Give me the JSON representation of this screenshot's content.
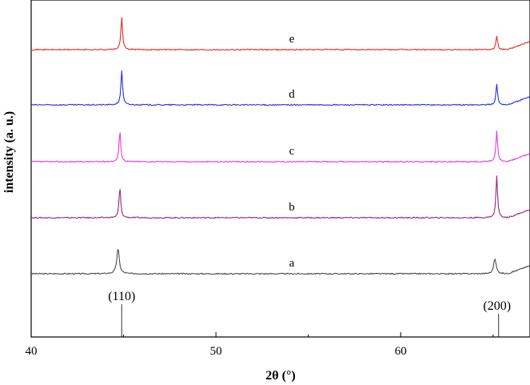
{
  "chart_data": {
    "type": "line",
    "title": "",
    "xlabel": "2θ (°)",
    "ylabel": "intensity (a. u.)",
    "xlim": [
      40,
      67
    ],
    "xticks": [
      40,
      50,
      60
    ],
    "x_tick_labels": [
      "40",
      "50",
      "60"
    ],
    "y_ticks_shown": false,
    "grid": false,
    "legend": "none",
    "series": [
      {
        "name": "a",
        "color": "#4a4a4a",
        "baseline": 0.0,
        "peaks": [
          {
            "x": 44.7,
            "height": 0.45,
            "width": 0.12
          },
          {
            "x": 65.1,
            "height": 0.27,
            "width": 0.12
          }
        ]
      },
      {
        "name": "b",
        "color": "#8e2a7e",
        "baseline": 1.0,
        "peaks": [
          {
            "x": 44.8,
            "height": 0.55,
            "width": 0.08
          },
          {
            "x": 65.2,
            "height": 0.75,
            "width": 0.08
          }
        ]
      },
      {
        "name": "c",
        "color": "#e53ad8",
        "baseline": 2.0,
        "peaks": [
          {
            "x": 44.8,
            "height": 0.55,
            "width": 0.08
          },
          {
            "x": 65.2,
            "height": 0.55,
            "width": 0.08
          }
        ]
      },
      {
        "name": "d",
        "color": "#2233e0",
        "baseline": 3.0,
        "peaks": [
          {
            "x": 44.9,
            "height": 0.62,
            "width": 0.08
          },
          {
            "x": 65.2,
            "height": 0.37,
            "width": 0.08
          }
        ]
      },
      {
        "name": "e",
        "color": "#e82a2a",
        "baseline": 4.0,
        "peaks": [
          {
            "x": 44.9,
            "height": 0.58,
            "width": 0.08
          },
          {
            "x": 65.2,
            "height": 0.24,
            "width": 0.08
          }
        ]
      }
    ],
    "reference_lines": [
      {
        "label": "(110)",
        "x": 44.9
      },
      {
        "label": "(200)",
        "x": 65.3
      }
    ]
  }
}
